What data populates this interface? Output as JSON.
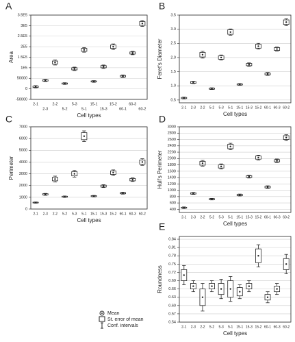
{
  "chart_data": [
    {
      "type": "errorbar",
      "panel": "A",
      "x_label": "Cell types",
      "y_label": "Area",
      "categories": [
        "2-1",
        "2-3",
        "2-2",
        "5-2",
        "5-3",
        "5-1",
        "15-1",
        "15-3",
        "15-2",
        "60-1",
        "60-3",
        "60-2"
      ],
      "values": [
        10000,
        40000,
        125000,
        25000,
        95000,
        185000,
        35000,
        105000,
        200000,
        60000,
        170000,
        310000
      ],
      "se": [
        3000,
        3000,
        7000,
        2500,
        5000,
        7000,
        2500,
        5000,
        8000,
        3500,
        5000,
        9000
      ],
      "ci": [
        5000,
        5000,
        12000,
        4000,
        8000,
        11000,
        4000,
        8000,
        13000,
        6000,
        8000,
        14000
      ],
      "ylim": [
        -50000,
        350000
      ],
      "yticks": [
        -50000,
        0,
        50000,
        {
          "value": 100000,
          "label": "1E5"
        },
        {
          "value": 150000,
          "label": "1.5E5"
        },
        {
          "value": 200000,
          "label": "2E5"
        },
        {
          "value": 250000,
          "label": "2.5E5"
        },
        {
          "value": 300000,
          "label": "3E5"
        },
        {
          "value": 350000,
          "label": "3.5E5"
        }
      ],
      "grid": true
    },
    {
      "type": "errorbar",
      "panel": "B",
      "x_label": "Cell types",
      "y_label": "Feret's Diameter",
      "categories": [
        "2-1",
        "2-3",
        "2-2",
        "5-2",
        "5-3",
        "5-1",
        "15-1",
        "15-3",
        "15-2",
        "60-1",
        "60-3",
        "60-2"
      ],
      "values": [
        0.57,
        1.12,
        2.1,
        0.9,
        2.0,
        2.9,
        1.05,
        1.75,
        2.4,
        1.42,
        2.3,
        3.25
      ],
      "se": [
        0.02,
        0.03,
        0.08,
        0.02,
        0.06,
        0.08,
        0.02,
        0.04,
        0.07,
        0.03,
        0.05,
        0.08
      ],
      "ci": [
        0.03,
        0.04,
        0.12,
        0.03,
        0.09,
        0.11,
        0.03,
        0.06,
        0.1,
        0.05,
        0.07,
        0.12
      ],
      "ylim": [
        0.4,
        3.5
      ],
      "yticks": [
        0.5,
        {
          "value": 1,
          "label": "1.0"
        },
        1.5,
        {
          "value": 2,
          "label": "2.0"
        },
        2.5,
        {
          "value": 3,
          "label": "3.0"
        },
        3.5
      ],
      "grid": true
    },
    {
      "type": "errorbar",
      "panel": "C",
      "x_label": "Cell types",
      "y_label": "Perimeter",
      "categories": [
        "2-1",
        "2-3",
        "2-2",
        "5-2",
        "5-3",
        "5-1",
        "15-1",
        "15-3",
        "15-2",
        "60-1",
        "60-3",
        "60-2"
      ],
      "values": [
        550,
        1250,
        2550,
        1050,
        3000,
        6200,
        1100,
        1950,
        3100,
        1350,
        2500,
        4000
      ],
      "se": [
        30,
        50,
        150,
        40,
        180,
        300,
        40,
        80,
        150,
        50,
        100,
        180
      ],
      "ci": [
        50,
        80,
        250,
        60,
        280,
        450,
        60,
        120,
        230,
        80,
        150,
        280
      ],
      "ylim": [
        0,
        7000
      ],
      "yticks": [
        0,
        1000,
        2000,
        3000,
        4000,
        5000,
        6000,
        7000
      ],
      "grid": true
    },
    {
      "type": "errorbar",
      "panel": "D",
      "x_label": "Cell types",
      "y_label": "Hull's Perimeter",
      "categories": [
        "2-1",
        "2-3",
        "2-2",
        "5-2",
        "5-3",
        "5-1",
        "15-1",
        "15-3",
        "15-2",
        "60-1",
        "60-3",
        "60-2"
      ],
      "values": [
        450,
        900,
        1850,
        720,
        1750,
        2380,
        850,
        1430,
        2030,
        1100,
        1930,
        2660
      ],
      "se": [
        15,
        20,
        60,
        15,
        50,
        70,
        20,
        30,
        50,
        25,
        35,
        60
      ],
      "ci": [
        25,
        30,
        90,
        25,
        80,
        100,
        30,
        45,
        75,
        40,
        55,
        90
      ],
      "ylim": [
        300,
        3000
      ],
      "yticks": [
        400,
        600,
        800,
        1000,
        1200,
        1400,
        1600,
        1800,
        2000,
        2200,
        2400,
        2600,
        2800,
        3000
      ],
      "grid": true
    },
    {
      "type": "errorbar",
      "panel": "E",
      "x_label": "Cell types",
      "y_label": "Roundness",
      "categories": [
        "2-1",
        "2-3",
        "2-2",
        "5-2",
        "5-3",
        "5-1",
        "15-1",
        "15-3",
        "15-2",
        "60-1",
        "60-3",
        "60-2"
      ],
      "values": [
        0.71,
        0.67,
        0.63,
        0.67,
        0.66,
        0.66,
        0.65,
        0.67,
        0.78,
        0.63,
        0.66,
        0.75
      ],
      "se": [
        0.02,
        0.01,
        0.03,
        0.01,
        0.02,
        0.03,
        0.015,
        0.01,
        0.025,
        0.01,
        0.01,
        0.02
      ],
      "ci": [
        0.035,
        0.02,
        0.05,
        0.02,
        0.035,
        0.045,
        0.025,
        0.02,
        0.04,
        0.02,
        0.02,
        0.035
      ],
      "ylim": [
        0.54,
        0.85
      ],
      "yticks": [
        0.54,
        0.57,
        {
          "value": 0.6,
          "label": "0.60"
        },
        0.63,
        0.66,
        0.69,
        0.72,
        0.75,
        0.78,
        0.81,
        0.84
      ],
      "grid": true
    }
  ],
  "legend": [
    "Mean",
    "St. error of mean",
    "Conf. intervals"
  ]
}
